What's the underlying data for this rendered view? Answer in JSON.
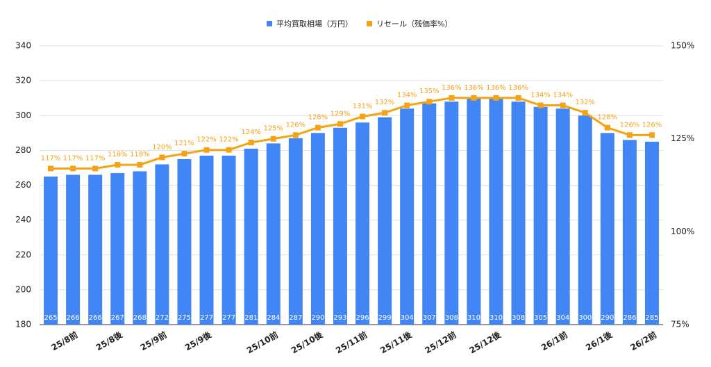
{
  "chart_data": {
    "type": "bar",
    "categories": [
      null,
      "25/8前",
      null,
      "25/8後",
      null,
      "25/9前",
      null,
      "25/9後",
      null,
      null,
      "25/10前",
      null,
      "25/10後",
      null,
      "25/11前",
      null,
      "25/11後",
      null,
      "25/12前",
      null,
      "25/12後",
      null,
      null,
      "26/1前",
      null,
      "26/1後",
      null,
      "26/2前"
    ],
    "series": [
      {
        "name": "平均買取相場（万円）",
        "type": "bar",
        "color": "#4285f4",
        "values": [
          265,
          266,
          266,
          267,
          268,
          272,
          275,
          277,
          277,
          281,
          284,
          287,
          290,
          293,
          296,
          299,
          304,
          307,
          308,
          310,
          310,
          308,
          305,
          304,
          300,
          290,
          286,
          285
        ]
      },
      {
        "name": "リセール（残価率%）",
        "type": "line",
        "axis": "y2",
        "color": "#f5a214",
        "values": [
          117,
          117,
          117,
          118,
          118,
          120,
          121,
          122,
          122,
          124,
          125,
          126,
          128,
          129,
          131,
          132,
          134,
          135,
          136,
          136,
          136,
          136,
          134,
          134,
          132,
          128,
          126,
          126
        ],
        "value_labels": [
          "117%",
          "117%",
          "117%",
          "118%",
          "118%",
          "120%",
          "121%",
          "122%",
          "122%",
          "124%",
          "125%",
          "126%",
          "128%",
          "129%",
          "131%",
          "132%",
          "134%",
          "135%",
          "136%",
          "136%",
          "136%",
          "136%",
          "134%",
          "134%",
          "132%",
          "128%",
          "126%",
          "126%"
        ]
      }
    ],
    "ylim": [
      180,
      340
    ],
    "yticks": [
      180,
      200,
      220,
      240,
      260,
      280,
      300,
      320,
      340
    ],
    "y2lim": [
      75,
      150
    ],
    "y2ticks": [
      {
        "value": 75,
        "label": "75%"
      },
      {
        "value": 100,
        "label": "100%"
      },
      {
        "value": 125,
        "label": "125%"
      },
      {
        "value": 150,
        "label": "150%"
      }
    ],
    "grid": true,
    "legend": "top"
  }
}
